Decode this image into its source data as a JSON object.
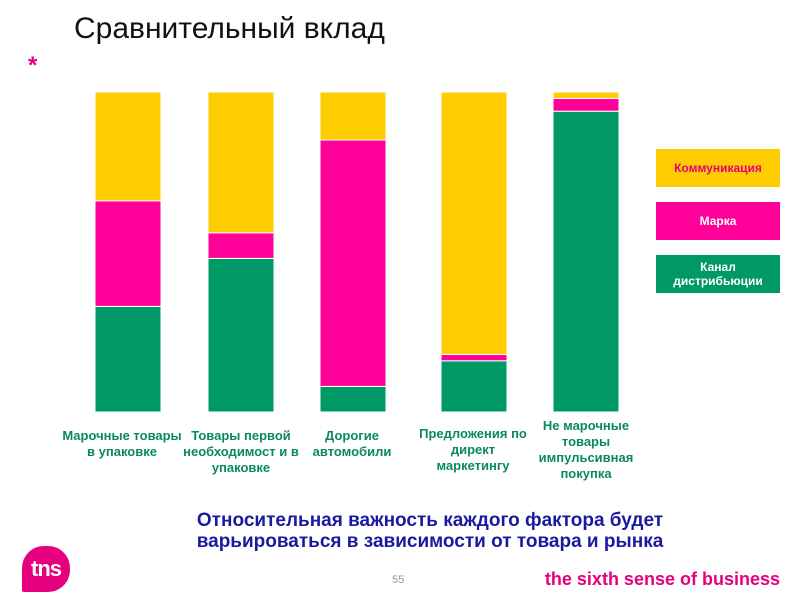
{
  "title": "Сравнительный вклад",
  "star": "*",
  "colors": {
    "communication": "#ffcc00",
    "brand": "#ff0099",
    "channel": "#009966",
    "label_text": "#0a8a5a",
    "subtitle_text": "#1a1aa0",
    "accent": "#e6007e"
  },
  "chart_data": {
    "type": "bar",
    "stacked": true,
    "categories": [
      "Марочные товары в упаковке",
      "Товары первой необходимост и в упаковке",
      "Дорогие автомобили",
      "Предложения по директ маркетингу",
      "Не марочные товары импульсивная покупка"
    ],
    "series": [
      {
        "name": "Канал дистрибьюции",
        "color": "#009966",
        "values": [
          33,
          48,
          8,
          16,
          94
        ]
      },
      {
        "name": "Марка",
        "color": "#ff0099",
        "values": [
          33,
          8,
          77,
          2,
          4
        ]
      },
      {
        "name": "Коммуникация",
        "color": "#ffcc00",
        "values": [
          34,
          44,
          15,
          82,
          2
        ]
      }
    ],
    "ylim": [
      0,
      100
    ],
    "grid": false,
    "legend_position": "right"
  },
  "category_labels": [
    "Марочные товары в упаковке",
    "Товары первой необходимост и в упаковке",
    "Дорогие автомобили",
    "Предложения по директ маркетингу",
    "Не марочные товары импульсивная покупка"
  ],
  "legend": {
    "communication": "Коммуникация",
    "brand": "Марка",
    "channel": "Канал дистрибьюции"
  },
  "subtitle_line1": "Относительная важность каждого фактора будет",
  "subtitle_line2": "варьироваться в зависимости от товара и рынка",
  "page_number": "55",
  "tagline": "the sixth sense of business",
  "logo_text": "tns"
}
